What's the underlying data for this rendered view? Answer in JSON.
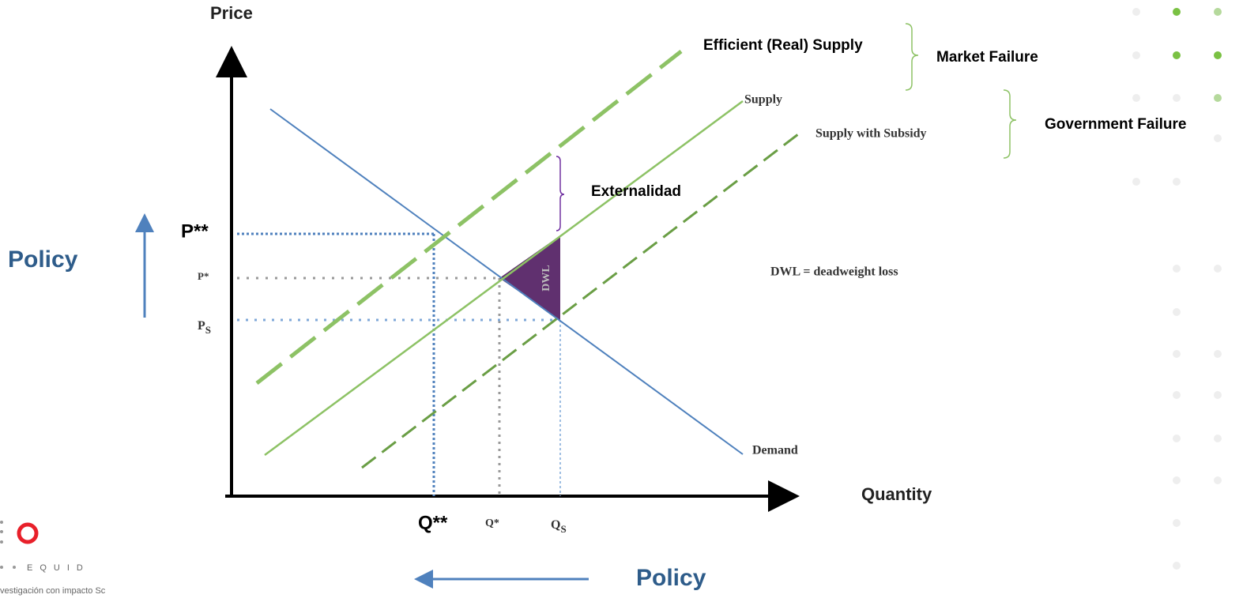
{
  "axes": {
    "y_label": "Price",
    "x_label": "Quantity"
  },
  "curves": {
    "efficient_supply": "Efficient (Real) Supply",
    "supply": "Supply",
    "subsidy_supply": "Supply with Subsidy",
    "demand": "Demand"
  },
  "brackets": {
    "market_failure": "Market Failure",
    "government_failure": "Government Failure",
    "externality": "Externalidad"
  },
  "dwl": {
    "label": "DWL",
    "legend": "DWL = deadweight loss"
  },
  "price_labels": {
    "p_double_star": "P**",
    "p_star": "P*",
    "p_s": {
      "main": "P",
      "sub": "S"
    }
  },
  "quantity_labels": {
    "q_double_star": "Q**",
    "q_star": "Q*",
    "q_s": {
      "main": "Q",
      "sub": "S"
    }
  },
  "policy": {
    "left": "Policy",
    "bottom": "Policy"
  },
  "logo": {
    "name": "EQUID",
    "tagline": "vestigación con impacto Sc"
  }
}
